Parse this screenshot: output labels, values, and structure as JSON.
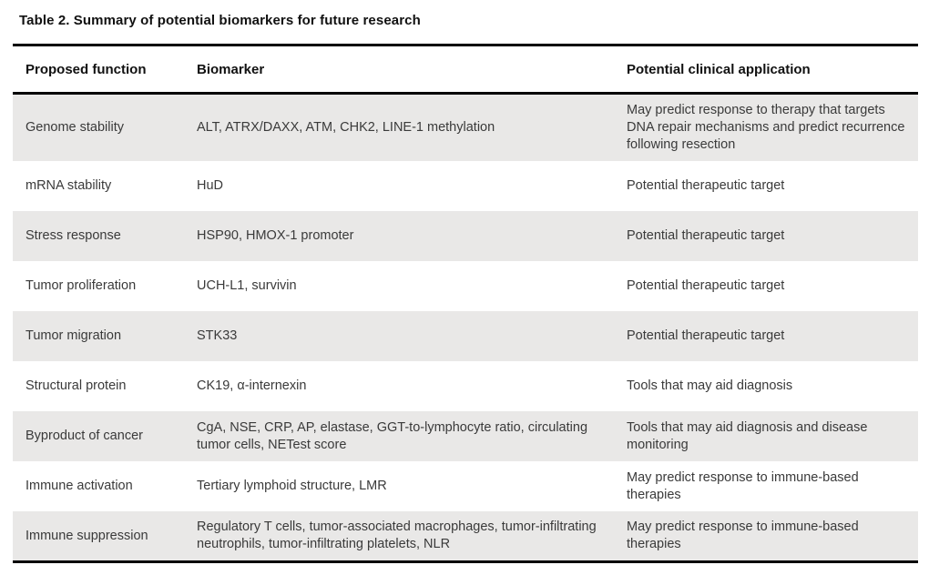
{
  "document": {
    "title": "Table 2. Summary of potential biomarkers for future research",
    "colors": {
      "row_shade": "#e9e8e7",
      "rule": "#000000",
      "body_text": "#3a3a3a",
      "heading_text": "#111111",
      "background": "#ffffff"
    },
    "table": {
      "columns": {
        "function": "Proposed function",
        "biomarker": "Biomarker",
        "application": "Potential clinical application"
      },
      "rows": [
        {
          "function": "Genome stability",
          "biomarker": "ALT, ATRX/DAXX, ATM, CHK2, LINE-1 methylation",
          "application": "May predict response to therapy that targets DNA repair mechanisms and predict recurrence following resection"
        },
        {
          "function": "mRNA stability",
          "biomarker": "HuD",
          "application": "Potential therapeutic target"
        },
        {
          "function": "Stress response",
          "biomarker": "HSP90, HMOX-1 promoter",
          "application": "Potential therapeutic target"
        },
        {
          "function": "Tumor proliferation",
          "biomarker": "UCH-L1, survivin",
          "application": "Potential therapeutic target"
        },
        {
          "function": "Tumor migration",
          "biomarker": "STK33",
          "application": "Potential therapeutic target"
        },
        {
          "function": "Structural protein",
          "biomarker": "CK19, α-internexin",
          "application": "Tools that may aid diagnosis"
        },
        {
          "function": "Byproduct of cancer",
          "biomarker": "CgA, NSE, CRP, AP, elastase, GGT-to-lymphocyte ratio, circulating tumor cells, NETest score",
          "application": "Tools that may aid diagnosis and disease monitoring"
        },
        {
          "function": "Immune activation",
          "biomarker": "Tertiary lymphoid structure, LMR",
          "application": "May predict response to immune-based therapies"
        },
        {
          "function": "Immune suppression",
          "biomarker": "Regulatory T cells, tumor-associated macrophages, tumor-infiltrating neutrophils, tumor-infiltrating platelets, NLR",
          "application": "May predict response to immune-based therapies"
        }
      ]
    }
  }
}
